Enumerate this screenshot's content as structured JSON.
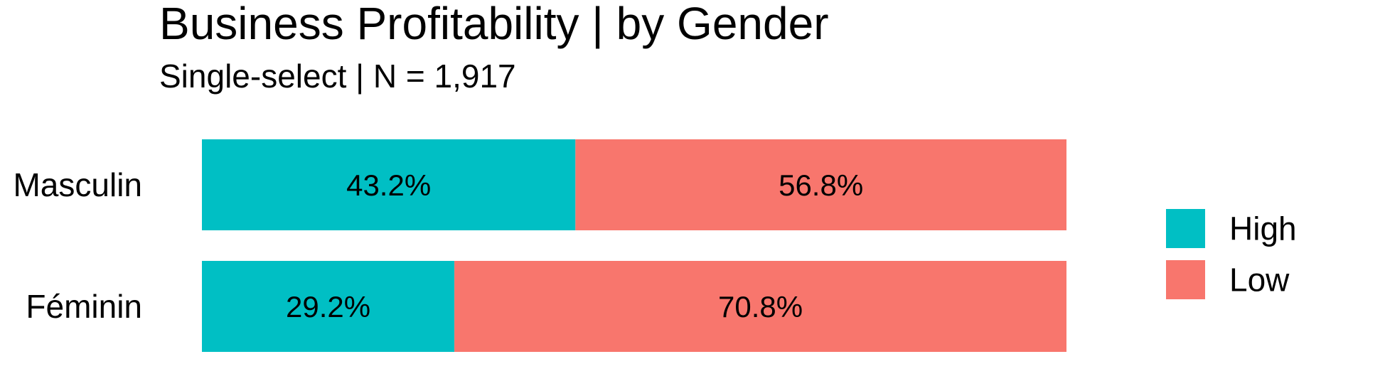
{
  "chart_data": {
    "type": "bar",
    "orientation": "horizontal",
    "stacked": true,
    "title": "Business Profitability | by Gender",
    "subtitle": "Single-select | N = 1,917",
    "categories": [
      "Masculin",
      "Féminin"
    ],
    "series": [
      {
        "name": "High",
        "color": "#00BFC4",
        "values": [
          43.2,
          29.2
        ],
        "labels": [
          "43.2%",
          "29.2%"
        ]
      },
      {
        "name": "Low",
        "color": "#F8766D",
        "values": [
          56.8,
          70.8
        ],
        "labels": [
          "56.8%",
          "70.8%"
        ]
      }
    ],
    "xlim": [
      0,
      100
    ],
    "grid": false,
    "legend_position": "right"
  }
}
